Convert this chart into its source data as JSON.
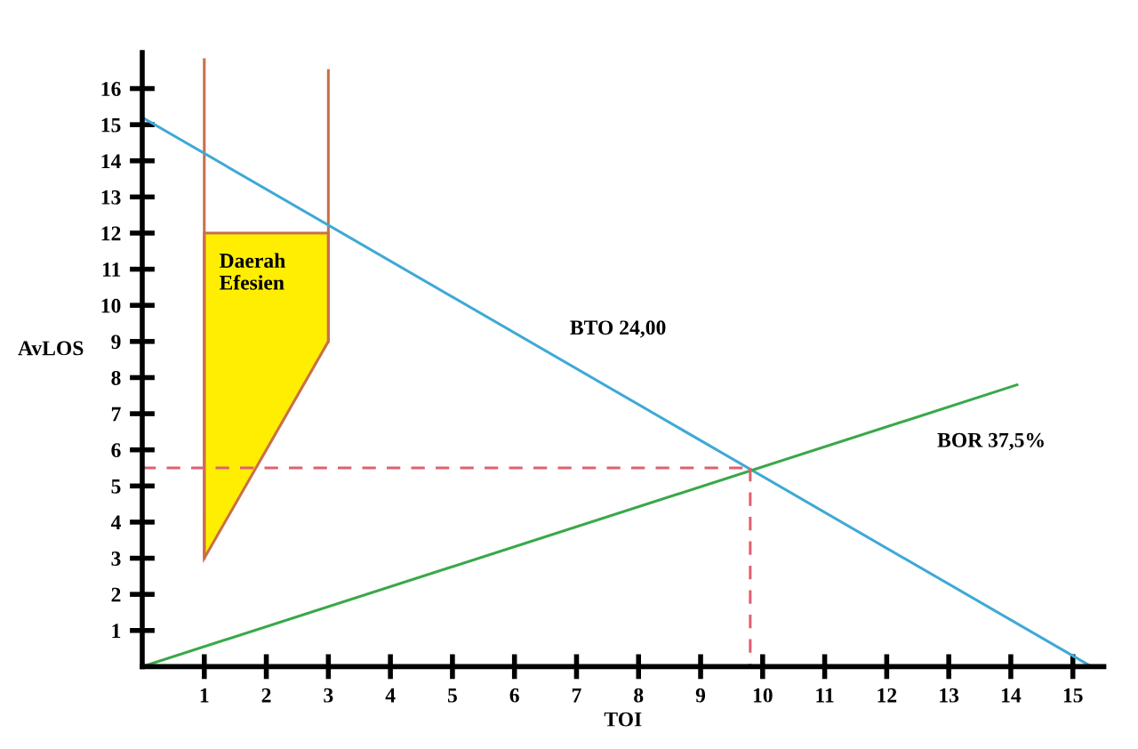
{
  "chart_data": {
    "type": "line",
    "xlabel": "TOI",
    "ylabel": "AvLOS",
    "xlim": [
      0,
      15.5
    ],
    "ylim": [
      0,
      17
    ],
    "xticks": [
      1,
      2,
      3,
      4,
      5,
      6,
      7,
      8,
      9,
      10,
      11,
      12,
      13,
      14,
      15
    ],
    "yticks": [
      1,
      2,
      3,
      4,
      5,
      6,
      7,
      8,
      9,
      10,
      11,
      12,
      13,
      14,
      15,
      16
    ],
    "grid": false,
    "legend": false,
    "marker": "none",
    "series": [
      {
        "type": "area",
        "color": "#ffee00",
        "x": [
          1,
          3,
          3,
          1
        ],
        "values": [
          12,
          12,
          9,
          3
        ]
      },
      {
        "type": "line",
        "color": "#c8704a",
        "x": [
          1,
          1
        ],
        "values": [
          3,
          16.8
        ]
      },
      {
        "type": "line",
        "color": "#c8704a",
        "x": [
          3,
          3
        ],
        "values": [
          9,
          16.5
        ]
      },
      {
        "name": "BTO 24,00",
        "color": "#3fa9d6",
        "x": [
          0,
          15.3
        ],
        "values": [
          15.2,
          0
        ]
      },
      {
        "name": "BOR 37,5%",
        "color": "#3aa84a",
        "x": [
          0,
          14.1
        ],
        "values": [
          0,
          7.8
        ]
      },
      {
        "type": "line",
        "color": "#e06070",
        "line_style": "dashed",
        "x": [
          0,
          9.8
        ],
        "values": [
          5.5,
          5.5
        ]
      },
      {
        "type": "line",
        "color": "#e06070",
        "line_style": "dashed",
        "x": [
          9.8,
          9.8
        ],
        "values": [
          5.5,
          0
        ]
      }
    ],
    "annotations": [
      "Daerah\nEfesien"
    ]
  }
}
